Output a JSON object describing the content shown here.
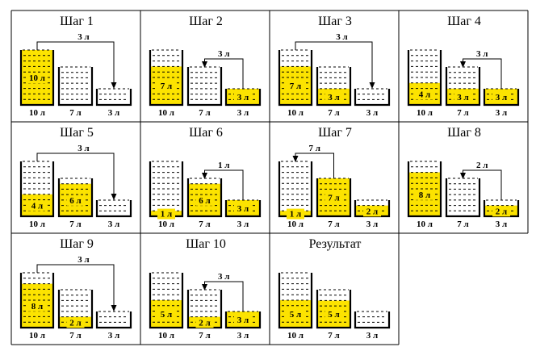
{
  "capacities": [
    "10 л",
    "7 л",
    "3 л"
  ],
  "capacity_values": [
    10,
    7,
    3
  ],
  "colors": {
    "water": "#fce300",
    "stroke": "#000000",
    "background": "#ffffff"
  },
  "cells": [
    {
      "title": "Шаг 1",
      "levels": [
        10,
        0,
        0
      ],
      "labels": [
        "10 л",
        "",
        ""
      ],
      "transfer": {
        "from": 0,
        "to": 2,
        "label": "3 л"
      }
    },
    {
      "title": "Шаг 2",
      "levels": [
        7,
        0,
        3
      ],
      "labels": [
        "7 л",
        "",
        "3 л"
      ],
      "transfer": {
        "from": 2,
        "to": 1,
        "label": "3 л"
      }
    },
    {
      "title": "Шаг 3",
      "levels": [
        7,
        3,
        0
      ],
      "labels": [
        "7 л",
        "3 л",
        ""
      ],
      "transfer": {
        "from": 0,
        "to": 2,
        "label": "3 л"
      }
    },
    {
      "title": "Шаг 4",
      "levels": [
        4,
        3,
        3
      ],
      "labels": [
        "4 л",
        "3 л",
        "3 л"
      ],
      "transfer": {
        "from": 2,
        "to": 1,
        "label": "3 л"
      }
    },
    {
      "title": "Шаг 5",
      "levels": [
        4,
        6,
        0
      ],
      "labels": [
        "4 л",
        "6 л",
        ""
      ],
      "transfer": {
        "from": 0,
        "to": 2,
        "label": "3 л"
      }
    },
    {
      "title": "Шаг 6",
      "levels": [
        1,
        6,
        3
      ],
      "labels": [
        "1 л",
        "6 л",
        "3 л"
      ],
      "transfer": {
        "from": 2,
        "to": 1,
        "label": "1 л"
      }
    },
    {
      "title": "Шаг 7",
      "levels": [
        1,
        7,
        2
      ],
      "labels": [
        "1 л",
        "7 л",
        "2 л"
      ],
      "transfer": {
        "from": 1,
        "to": 0,
        "label": "7 л"
      }
    },
    {
      "title": "Шаг 8",
      "levels": [
        8,
        0,
        2
      ],
      "labels": [
        "8 л",
        "",
        "2 л"
      ],
      "transfer": {
        "from": 2,
        "to": 1,
        "label": "2 л"
      }
    },
    {
      "title": "Шаг 9",
      "levels": [
        8,
        2,
        0
      ],
      "labels": [
        "8 л",
        "2 л",
        ""
      ],
      "transfer": {
        "from": 0,
        "to": 2,
        "label": "3 л"
      }
    },
    {
      "title": "Шаг 10",
      "levels": [
        5,
        2,
        3
      ],
      "labels": [
        "5 л",
        "2 л",
        "3 л"
      ],
      "transfer": {
        "from": 2,
        "to": 1,
        "label": "3 л"
      }
    },
    {
      "title": "Результат",
      "levels": [
        5,
        5,
        0
      ],
      "labels": [
        "5 л",
        "5 л",
        ""
      ],
      "transfer": null
    }
  ]
}
